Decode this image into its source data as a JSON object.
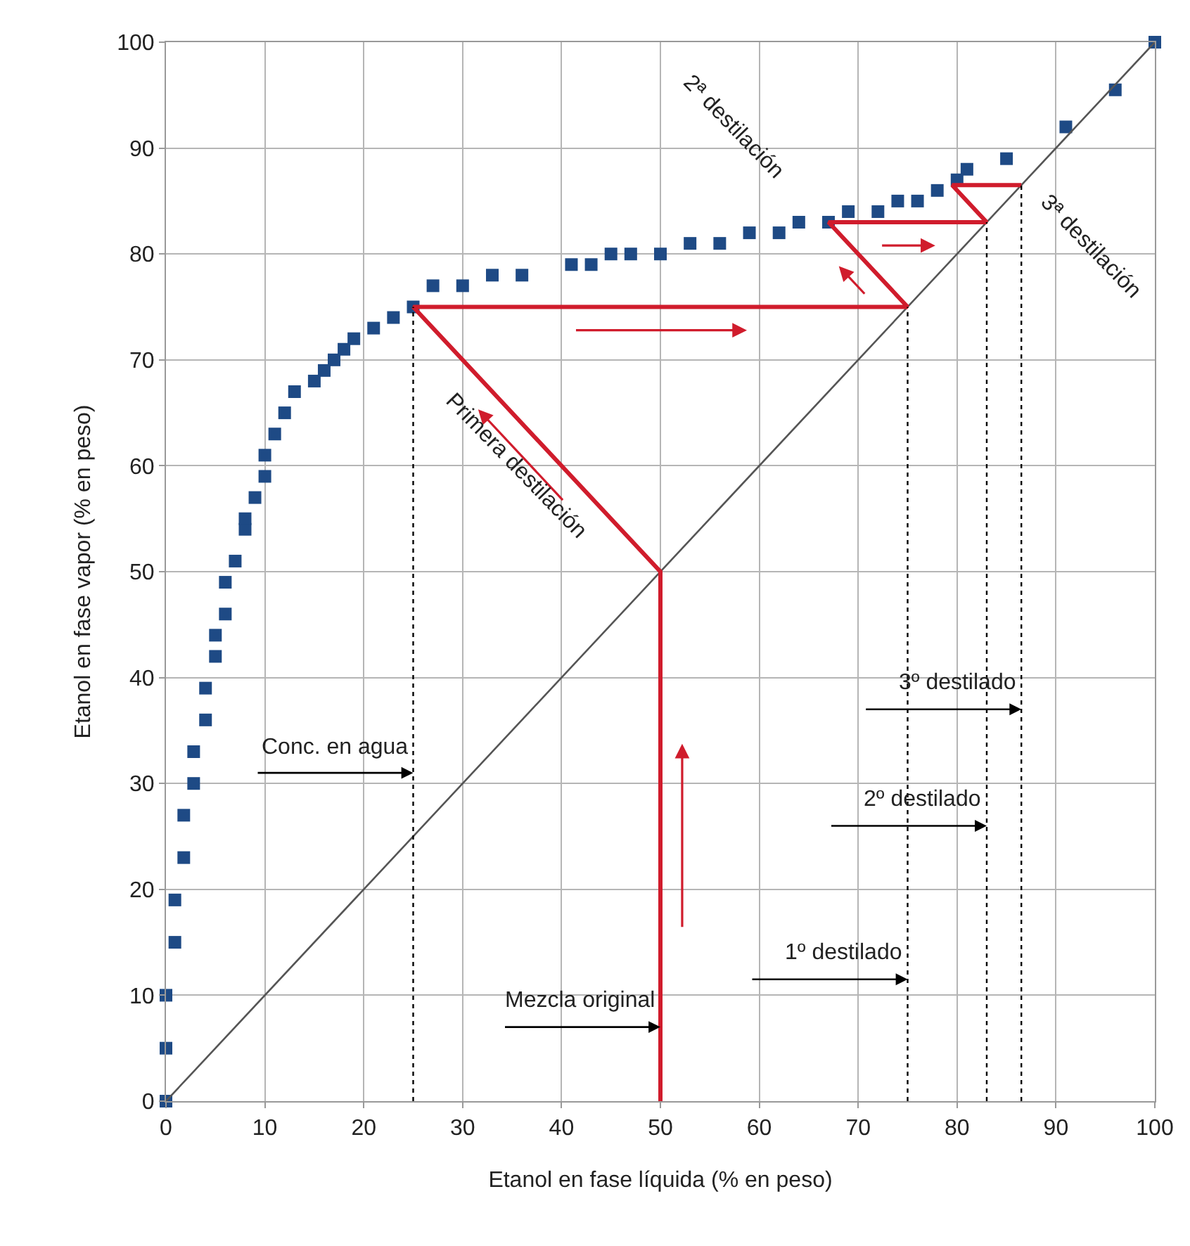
{
  "chart_data": {
    "type": "scatter",
    "xlabel": "Etanol en fase líquida (% en peso)",
    "ylabel": "Etanol en fase vapor (% en peso)",
    "xlim": [
      0,
      100
    ],
    "ylim": [
      0,
      100
    ],
    "xticks": [
      0,
      10,
      20,
      30,
      40,
      50,
      60,
      70,
      80,
      90,
      100
    ],
    "yticks": [
      0,
      10,
      20,
      30,
      40,
      50,
      60,
      70,
      80,
      90,
      100
    ],
    "grid": true,
    "series": [
      {
        "marker": "square",
        "color": "#1e4a85",
        "x": [
          0,
          0,
          0,
          0.9,
          0.9,
          1.8,
          1.8,
          2.8,
          2.8,
          4,
          4,
          5,
          5,
          6,
          6,
          7,
          8,
          8,
          9,
          10,
          10,
          11,
          12,
          13,
          15,
          16,
          17,
          18,
          19,
          21,
          23,
          25,
          27,
          30,
          33,
          36,
          41,
          43,
          45,
          47,
          50,
          53,
          56,
          59,
          62,
          64,
          67,
          69,
          72,
          74,
          76,
          78,
          80,
          81,
          85,
          91,
          96,
          100
        ],
        "values": [
          0,
          5,
          10,
          15,
          19,
          23,
          27,
          30,
          33,
          36,
          39,
          42,
          44,
          46,
          49,
          51,
          54,
          55,
          57,
          59,
          61,
          63,
          65,
          67,
          68,
          69,
          70,
          71,
          72,
          73,
          74,
          75,
          77,
          77,
          78,
          78,
          79,
          79,
          80,
          80,
          80,
          81,
          81,
          82,
          82,
          83,
          83,
          84,
          84,
          85,
          85,
          86,
          87,
          88,
          89,
          92,
          95.5,
          100
        ]
      },
      {
        "type": "line",
        "color": "#555555",
        "x": [
          0,
          100
        ],
        "values": [
          0,
          100
        ]
      },
      {
        "type": "line",
        "color": "#d01c2c",
        "x": [
          50,
          50,
          25,
          75,
          67,
          83,
          79.5,
          86.5
        ],
        "values": [
          0,
          50,
          75,
          75,
          83,
          83,
          86.5,
          86.5
        ]
      },
      {
        "type": "line",
        "color": "#000000",
        "line_style": "dotted",
        "x": [
          25,
          25,
          null,
          75,
          75,
          null,
          83,
          83,
          null,
          86.5,
          86.5
        ],
        "values": [
          0,
          75,
          null,
          0,
          75,
          null,
          0,
          83,
          null,
          0,
          86.5
        ]
      }
    ],
    "annotations": [
      {
        "text": "Conc. en agua",
        "x": 25,
        "y": 31
      },
      {
        "text": "Mezcla original",
        "x": 50,
        "y": 7
      },
      {
        "text": "1º destilado",
        "x": 75,
        "y": 11.5
      },
      {
        "text": "2º destilado",
        "x": 83,
        "y": 26
      },
      {
        "text": "3º destilado",
        "x": 86.5,
        "y": 37
      },
      "Primera destilación",
      "2ª destilación",
      "3ª destilación"
    ]
  }
}
